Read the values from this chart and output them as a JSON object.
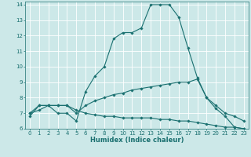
{
  "xlabel": "Humidex (Indice chaleur)",
  "xlim": [
    -0.5,
    23.5
  ],
  "ylim": [
    6,
    14.2
  ],
  "yticks": [
    6,
    7,
    8,
    9,
    10,
    11,
    12,
    13,
    14
  ],
  "xticks": [
    0,
    1,
    2,
    3,
    4,
    5,
    6,
    7,
    8,
    9,
    10,
    11,
    12,
    13,
    14,
    15,
    16,
    17,
    18,
    19,
    20,
    21,
    22,
    23
  ],
  "bg_color": "#cce8e8",
  "grid_color": "#aad4d4",
  "line_color": "#1a7070",
  "curve1_x": [
    0,
    1,
    2,
    3,
    4,
    5,
    6,
    7,
    8,
    9,
    10,
    11,
    12,
    13,
    14,
    15,
    16,
    17,
    18,
    19,
    20,
    21,
    22,
    23
  ],
  "curve1_y": [
    6.8,
    7.5,
    7.5,
    7.0,
    7.0,
    6.5,
    8.4,
    9.4,
    10.0,
    11.8,
    12.2,
    12.2,
    12.5,
    14.0,
    14.0,
    14.0,
    13.2,
    11.2,
    9.3,
    8.0,
    7.3,
    6.8,
    6.1,
    6.0
  ],
  "curve2_x": [
    0,
    1,
    2,
    3,
    4,
    5,
    6,
    7,
    8,
    9,
    10,
    11,
    12,
    13,
    14,
    15,
    16,
    17,
    18,
    19,
    20,
    21,
    22,
    23
  ],
  "curve2_y": [
    7.0,
    7.5,
    7.5,
    7.5,
    7.5,
    7.0,
    7.5,
    7.8,
    8.0,
    8.2,
    8.3,
    8.5,
    8.6,
    8.7,
    8.8,
    8.9,
    9.0,
    9.0,
    9.2,
    8.0,
    7.5,
    7.0,
    6.8,
    6.5
  ],
  "curve3_x": [
    0,
    1,
    2,
    3,
    4,
    5,
    6,
    7,
    8,
    9,
    10,
    11,
    12,
    13,
    14,
    15,
    16,
    17,
    18,
    19,
    20,
    21,
    22,
    23
  ],
  "curve3_y": [
    7.0,
    7.2,
    7.5,
    7.5,
    7.5,
    7.2,
    7.0,
    6.9,
    6.8,
    6.8,
    6.7,
    6.7,
    6.7,
    6.7,
    6.6,
    6.6,
    6.5,
    6.5,
    6.4,
    6.3,
    6.2,
    6.1,
    6.1,
    6.0
  ],
  "figsize": [
    3.2,
    2.0
  ],
  "dpi": 100,
  "tick_fontsize": 5.0,
  "xlabel_fontsize": 6.0,
  "marker_size": 1.8,
  "linewidth": 0.8
}
